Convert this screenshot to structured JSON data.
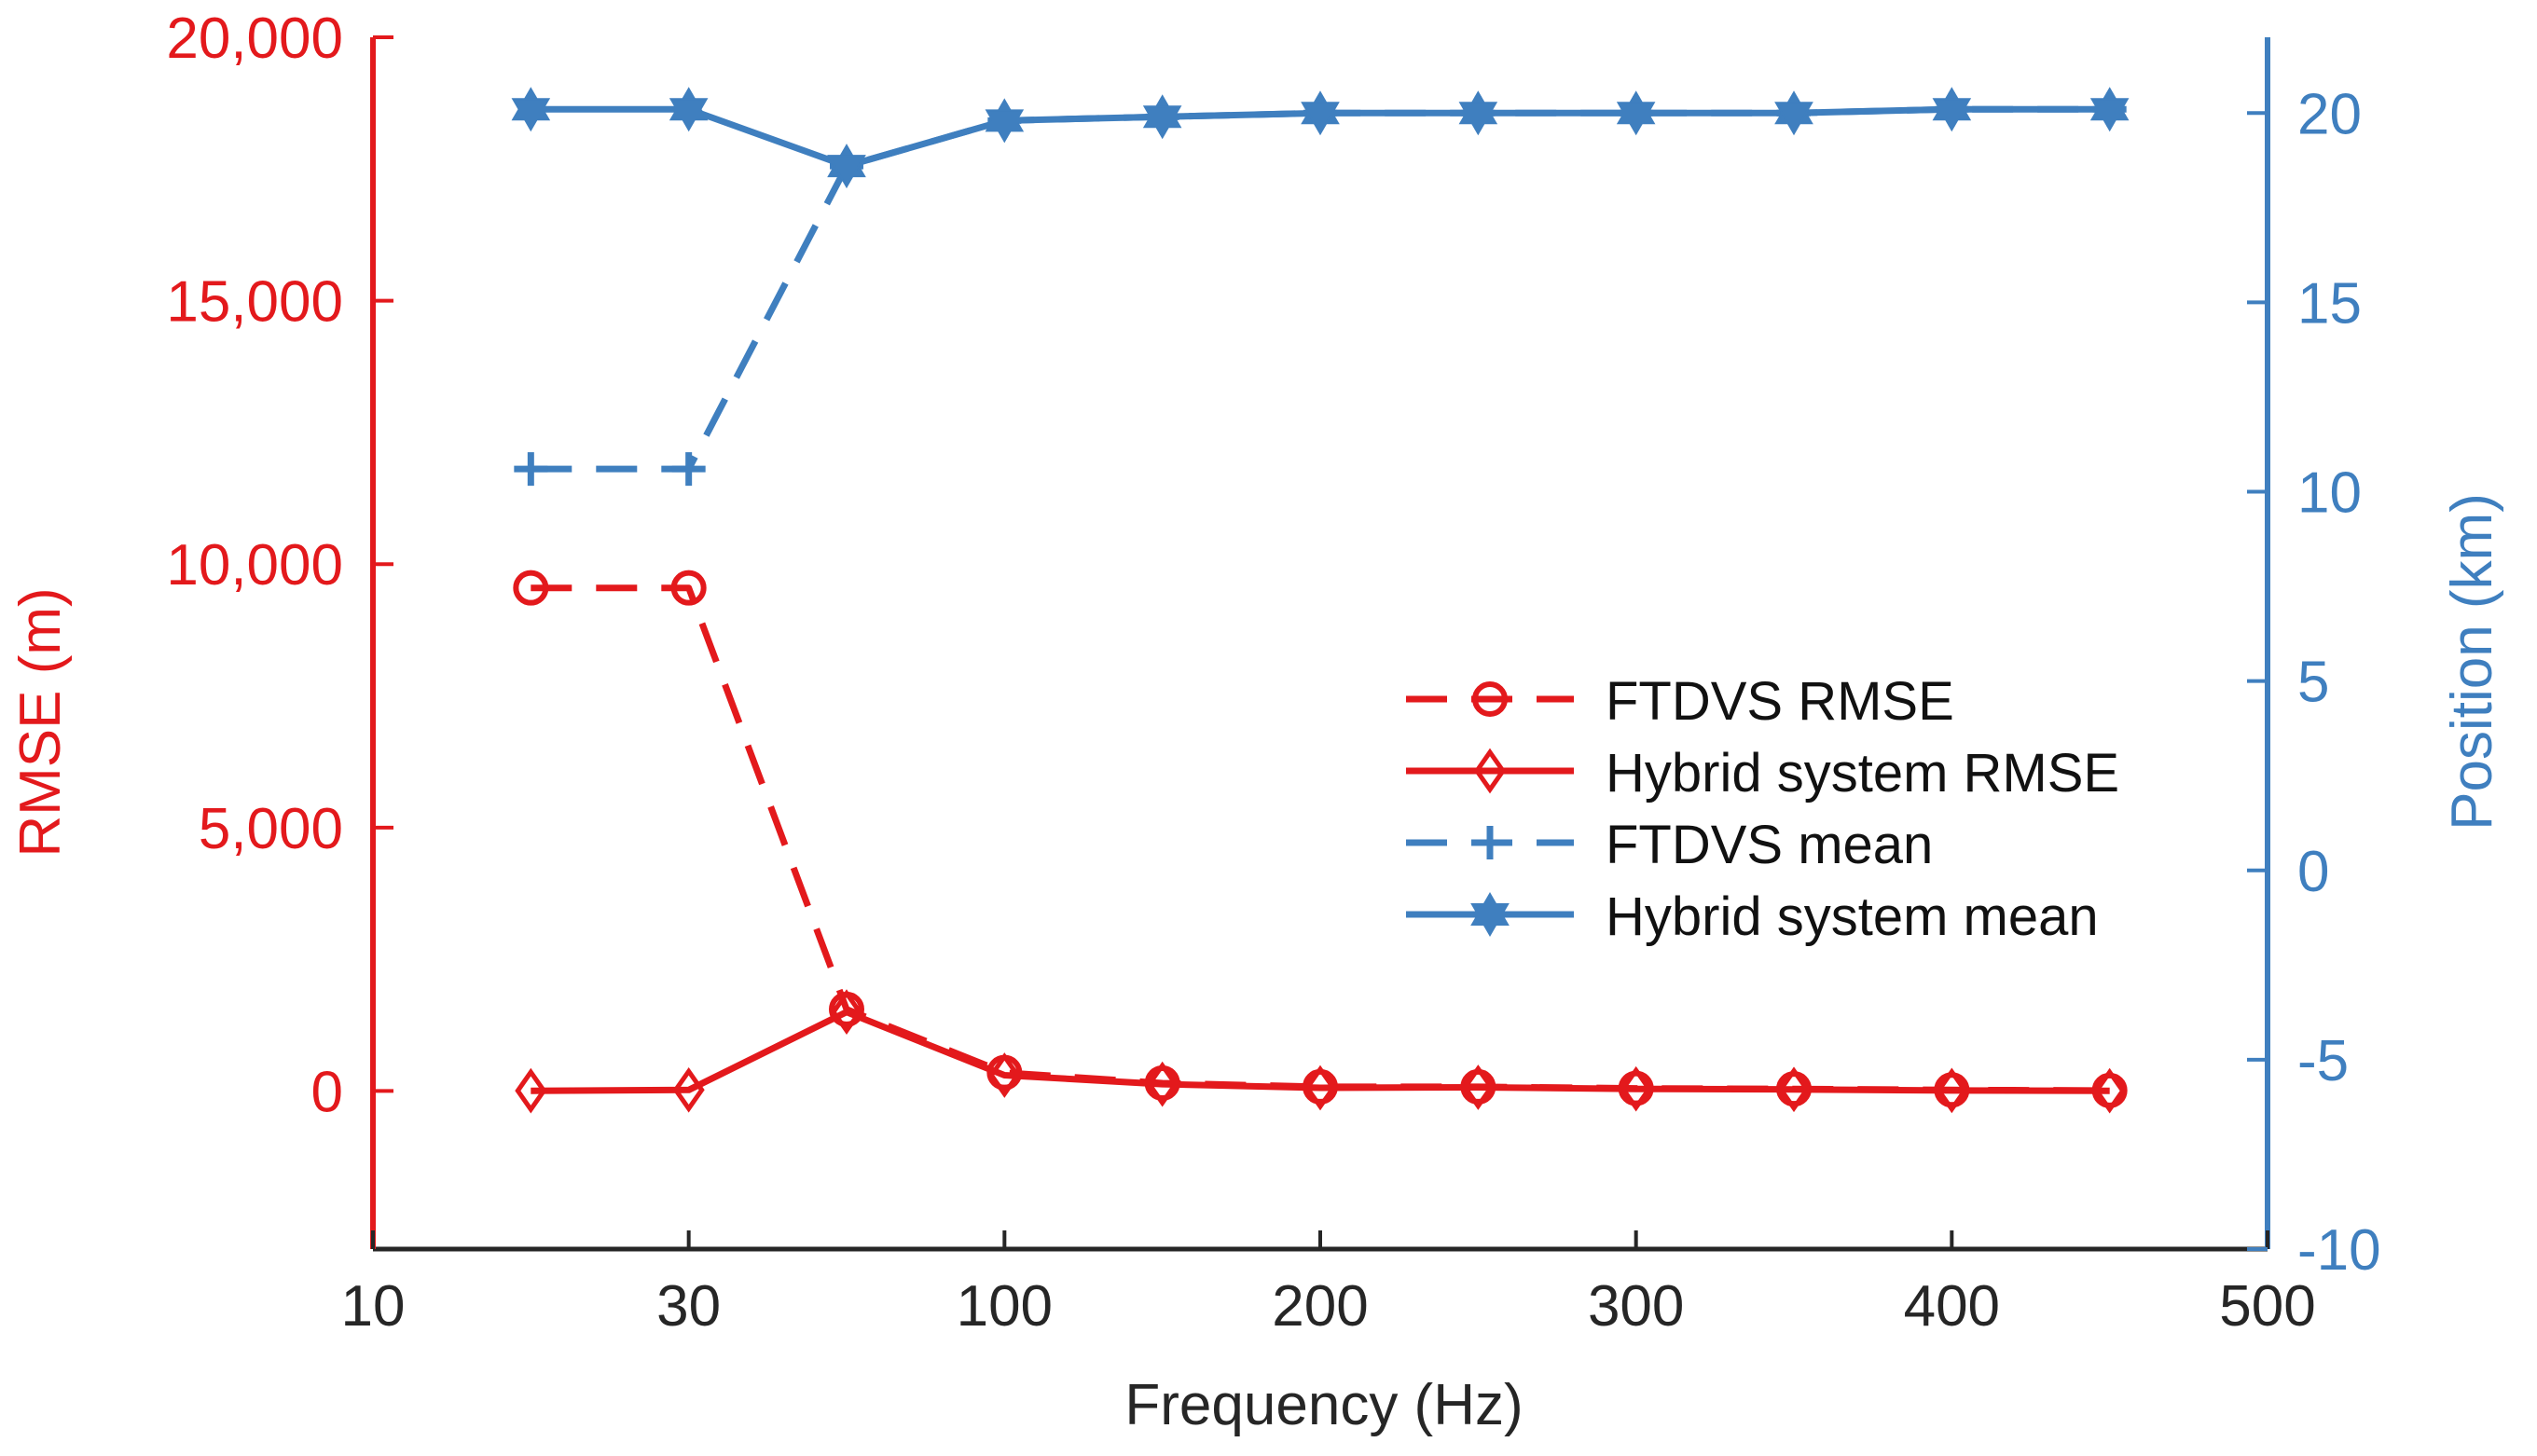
{
  "chart_data": {
    "type": "line",
    "title": "",
    "xlabel": "Frequency (Hz)",
    "ylabel_left": "RMSE (m)",
    "ylabel_right": "Position (km)",
    "x_tick_labels": [
      "10",
      "30",
      "100",
      "200",
      "300",
      "400",
      "500"
    ],
    "categories": [
      "20",
      "30",
      "50",
      "100",
      "150",
      "200",
      "250",
      "300",
      "350",
      "400",
      "450"
    ],
    "ylim_left": [
      -3000,
      20000
    ],
    "ylim_right": [
      -10,
      22
    ],
    "y_ticks_left": [
      0,
      5000,
      10000,
      15000,
      20000
    ],
    "y_tick_labels_left": [
      "0",
      "5,000",
      "10,000",
      "15,000",
      "20,000"
    ],
    "y_ticks_right": [
      -10,
      -5,
      0,
      5,
      10,
      15,
      20
    ],
    "y_tick_labels_right": [
      "-10",
      "-5",
      "0",
      "5",
      "10",
      "15",
      "20"
    ],
    "legend_position": "center-right",
    "colors": {
      "rmse": "#e3191c",
      "position": "#3f7fbf",
      "axis": "#262626"
    },
    "series": [
      {
        "name": "FTDVS RMSE",
        "axis": "left",
        "color": "#e3191c",
        "dash": true,
        "marker": "circle",
        "values": [
          9550,
          9550,
          1550,
          350,
          150,
          80,
          80,
          50,
          40,
          20,
          10
        ]
      },
      {
        "name": "Hybrid system RMSE",
        "axis": "left",
        "color": "#e3191c",
        "dash": false,
        "marker": "diamond",
        "values": [
          5,
          20,
          1500,
          300,
          130,
          60,
          70,
          40,
          30,
          10,
          5
        ]
      },
      {
        "name": "FTDVS mean",
        "axis": "right",
        "color": "#3f7fbf",
        "dash": true,
        "marker": "plus",
        "values": [
          10.6,
          10.6,
          18.6,
          19.8,
          19.9,
          20.0,
          20.0,
          20.0,
          20.0,
          20.1,
          20.1
        ]
      },
      {
        "name": "Hybrid system mean",
        "axis": "right",
        "color": "#3f7fbf",
        "dash": false,
        "marker": "hexagram",
        "values": [
          20.1,
          20.1,
          18.6,
          19.8,
          19.9,
          20.0,
          20.0,
          20.0,
          20.0,
          20.1,
          20.1
        ]
      }
    ]
  }
}
